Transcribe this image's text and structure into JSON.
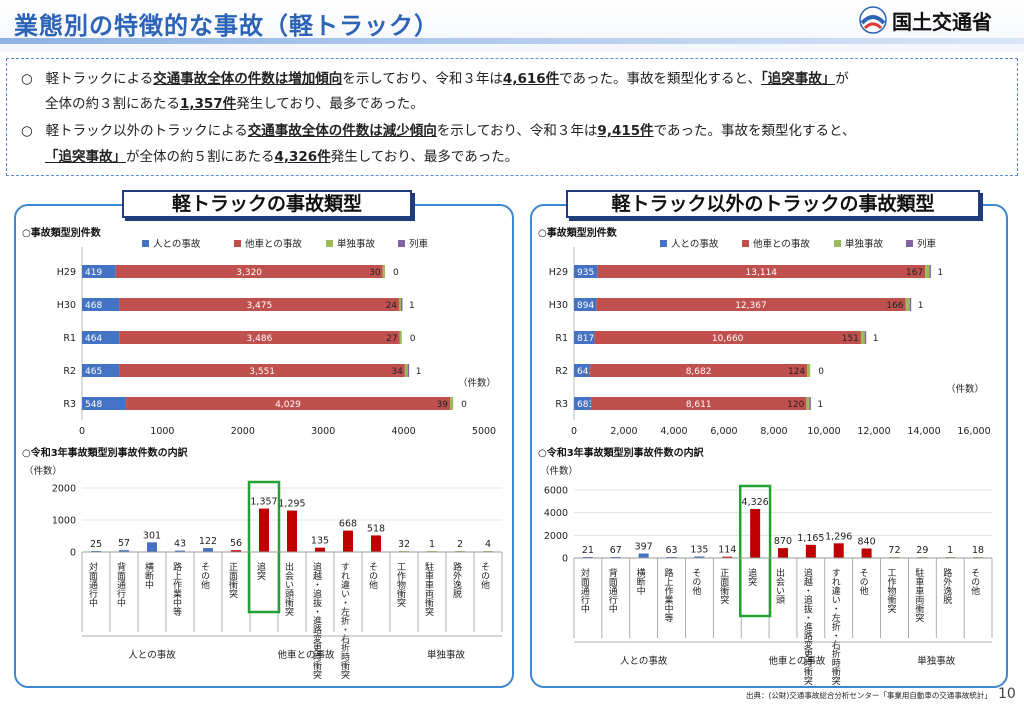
{
  "header": {
    "title": "業態別の特徴的な事故（軽トラック）",
    "org": "国土交通省",
    "colors": {
      "title": "#2c63b7",
      "accent": "#3e86cf"
    }
  },
  "summary": {
    "bullet1": {
      "mark": "○",
      "t1": "軽トラックによる",
      "t2": "交通事故全体の件数は増加傾向",
      "t3": "を示しており、令和３年は",
      "t4": "4,616件",
      "t5": "であった。事故を類型化すると、",
      "t6": "「追突事故」",
      "t7": "が",
      "t8": "全体の約３割にあたる",
      "t9": "1,357件",
      "t10": "発生しており、最多であった。"
    },
    "bullet2": {
      "mark": "○",
      "t1": "軽トラック以外のトラックによる",
      "t2": "交通事故全体の件数は減少傾向",
      "t3": "を示しており、令和３年は",
      "t4": "9,415件",
      "t5": "であった。事故を類型化すると、",
      "t6": "「追突事故」",
      "t7": "が全体の約５割にあたる",
      "t8": "4,326件",
      "t9": "発生しており、最多であった。"
    }
  },
  "panels": {
    "left_title": "軽トラックの事故類型",
    "right_title": "軽トラック以外のトラックの事故類型"
  },
  "chart_data": [
    {
      "id": "left-bar",
      "type": "bar",
      "orientation": "horizontal",
      "stacked": true,
      "title": "○事故類型別件数",
      "unit_label": "（件数）",
      "categories": [
        "H29",
        "H30",
        "R1",
        "R2",
        "R3"
      ],
      "series": [
        {
          "name": "人との事故",
          "color": "#4472c4",
          "values": [
            419,
            468,
            464,
            465,
            548
          ]
        },
        {
          "name": "他車との事故",
          "color": "#c0504d",
          "values": [
            3320,
            3475,
            3486,
            3551,
            4029
          ]
        },
        {
          "name": "単独事故",
          "color": "#9bbb59",
          "values": [
            30,
            24,
            27,
            34,
            39
          ]
        },
        {
          "name": "列車",
          "color": "#8064a2",
          "values": [
            0,
            1,
            0,
            1,
            0
          ]
        }
      ],
      "xlim": [
        0,
        5000
      ],
      "xticks": [
        "0",
        "1000",
        "2000",
        "3000",
        "4000",
        "5000"
      ],
      "legend": "top"
    },
    {
      "id": "left-breakdown",
      "type": "bar",
      "title": "○令和3年事故類型別事故件数の内訳",
      "unit_label": "（件数）",
      "categories": [
        "対面通行中",
        "背面通行中",
        "横断中",
        "路上作業中等",
        "その他",
        "正面衝突",
        "追突",
        "出会い頭衝突",
        "追越・追抜・進路変更時衝突",
        "すれ違い・左折・右折時衝突",
        "その他",
        "工作物衝突",
        "駐車車両衝突",
        "路外逸脱",
        "その他"
      ],
      "values": [
        25,
        57,
        301,
        43,
        122,
        56,
        1357,
        1295,
        135,
        668,
        518,
        32,
        1,
        2,
        4
      ],
      "value_labels": [
        "25",
        "57",
        "301",
        "43",
        "122",
        "56",
        "1,357",
        "1,295",
        "135",
        "668",
        "518",
        "32",
        "1",
        "2",
        "4"
      ],
      "groups": [
        {
          "label": "人との事故",
          "start": 0,
          "end": 4
        },
        {
          "label": "他車との事故",
          "start": 5,
          "end": 10
        },
        {
          "label": "単独事故",
          "start": 11,
          "end": 14
        }
      ],
      "ylim": [
        0,
        2000
      ],
      "yticks": [
        "0",
        "1000",
        "2000"
      ],
      "highlight_index": 6
    },
    {
      "id": "right-bar",
      "type": "bar",
      "orientation": "horizontal",
      "stacked": true,
      "title": "○事故類型別件数",
      "unit_label": "（件数）",
      "categories": [
        "H29",
        "H30",
        "R1",
        "R2",
        "R3"
      ],
      "series": [
        {
          "name": "人との事故",
          "color": "#4472c4",
          "values": [
            935,
            894,
            817,
            643,
            683
          ]
        },
        {
          "name": "他車との事故",
          "color": "#c0504d",
          "values": [
            13114,
            12367,
            10660,
            8682,
            8611
          ]
        },
        {
          "name": "単独事故",
          "color": "#9bbb59",
          "values": [
            167,
            166,
            151,
            124,
            120
          ]
        },
        {
          "name": "列車",
          "color": "#8064a2",
          "values": [
            1,
            1,
            1,
            0,
            1
          ]
        }
      ],
      "xlim": [
        0,
        16000
      ],
      "xticks": [
        "0",
        "2,000",
        "4,000",
        "6,000",
        "8,000",
        "10,000",
        "12,000",
        "14,000",
        "16,000"
      ],
      "legend": "top"
    },
    {
      "id": "right-breakdown",
      "type": "bar",
      "title": "○令和3年事故類型別事故件数の内訳",
      "unit_label": "（件数）",
      "categories": [
        "対面通行中",
        "背面通行中",
        "横断中",
        "路上作業中等",
        "その他",
        "正面衝突",
        "追突",
        "出会い頭",
        "追越・追抜・進路変更時衝突",
        "すれ違い・左折・右折時衝突",
        "その他",
        "工作物衝突",
        "駐車車両衝突",
        "路外逸脱",
        "その他"
      ],
      "values": [
        21,
        67,
        397,
        63,
        135,
        114,
        4326,
        870,
        1165,
        1296,
        840,
        72,
        29,
        1,
        18
      ],
      "value_labels": [
        "21",
        "67",
        "397",
        "63",
        "135",
        "114",
        "4,326",
        "870",
        "1,165",
        "1,296",
        "840",
        "72",
        "29",
        "1",
        "18"
      ],
      "groups": [
        {
          "label": "人との事故",
          "start": 0,
          "end": 4
        },
        {
          "label": "他車との事故",
          "start": 5,
          "end": 10
        },
        {
          "label": "単独事故",
          "start": 11,
          "end": 14
        }
      ],
      "ylim": [
        0,
        6000
      ],
      "yticks": [
        "0",
        "2000",
        "4000",
        "6000"
      ],
      "highlight_index": 6
    }
  ],
  "footer": {
    "source": "出典：(公財)交通事故総合分析センター「事業用自動車の交通事故統計」",
    "page": "10"
  }
}
